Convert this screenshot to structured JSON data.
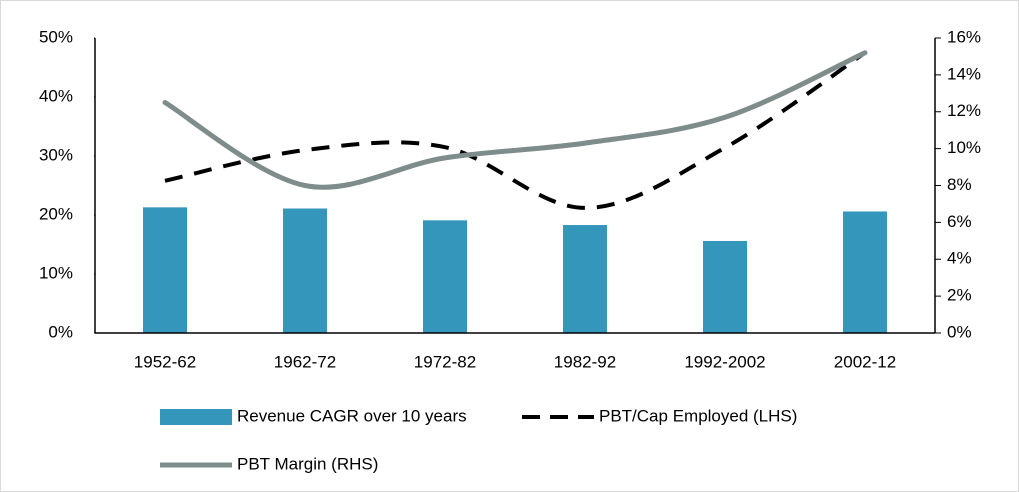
{
  "chart_data": {
    "type": "bar-line",
    "categories": [
      "1952-62",
      "1962-72",
      "1972-82",
      "1982-92",
      "1992-2002",
      "2002-12"
    ],
    "series": [
      {
        "name": "Revenue CAGR over 10 years",
        "type": "bar",
        "color": "#3596bc",
        "axis": "y",
        "values": [
          21.3,
          21.1,
          19.1,
          18.3,
          15.6,
          20.6
        ]
      },
      {
        "name": "PBT/Cap Employed (LHS)",
        "type": "line",
        "dashed": true,
        "color": "#000000",
        "axis": "y",
        "values": [
          25.8,
          31,
          31.5,
          21.2,
          31.4,
          47.5
        ]
      },
      {
        "name": "PBT Margin (RHS)",
        "type": "line",
        "dashed": false,
        "color": "#7f8c8c",
        "axis": "y2",
        "values": [
          12.5,
          8.0,
          9.5,
          10.3,
          11.7,
          15.2
        ]
      }
    ],
    "ylim": [
      0,
      50
    ],
    "yticks": [
      {
        "value": 0,
        "label": "0%"
      },
      {
        "value": 10,
        "label": "10%"
      },
      {
        "value": 20,
        "label": "20%"
      },
      {
        "value": 30,
        "label": "30%"
      },
      {
        "value": 40,
        "label": "40%"
      },
      {
        "value": 50,
        "label": "50%"
      }
    ],
    "y2lim": [
      0,
      16
    ],
    "y2ticks": [
      {
        "value": 0,
        "label": "0%"
      },
      {
        "value": 2,
        "label": "2%"
      },
      {
        "value": 4,
        "label": "4%"
      },
      {
        "value": 6,
        "label": "6%"
      },
      {
        "value": 8,
        "label": "8%"
      },
      {
        "value": 10,
        "label": "10%"
      },
      {
        "value": 12,
        "label": "12%"
      },
      {
        "value": 14,
        "label": "14%"
      },
      {
        "value": 16,
        "label": "16%"
      }
    ],
    "grid": false,
    "legend": "bottom"
  }
}
